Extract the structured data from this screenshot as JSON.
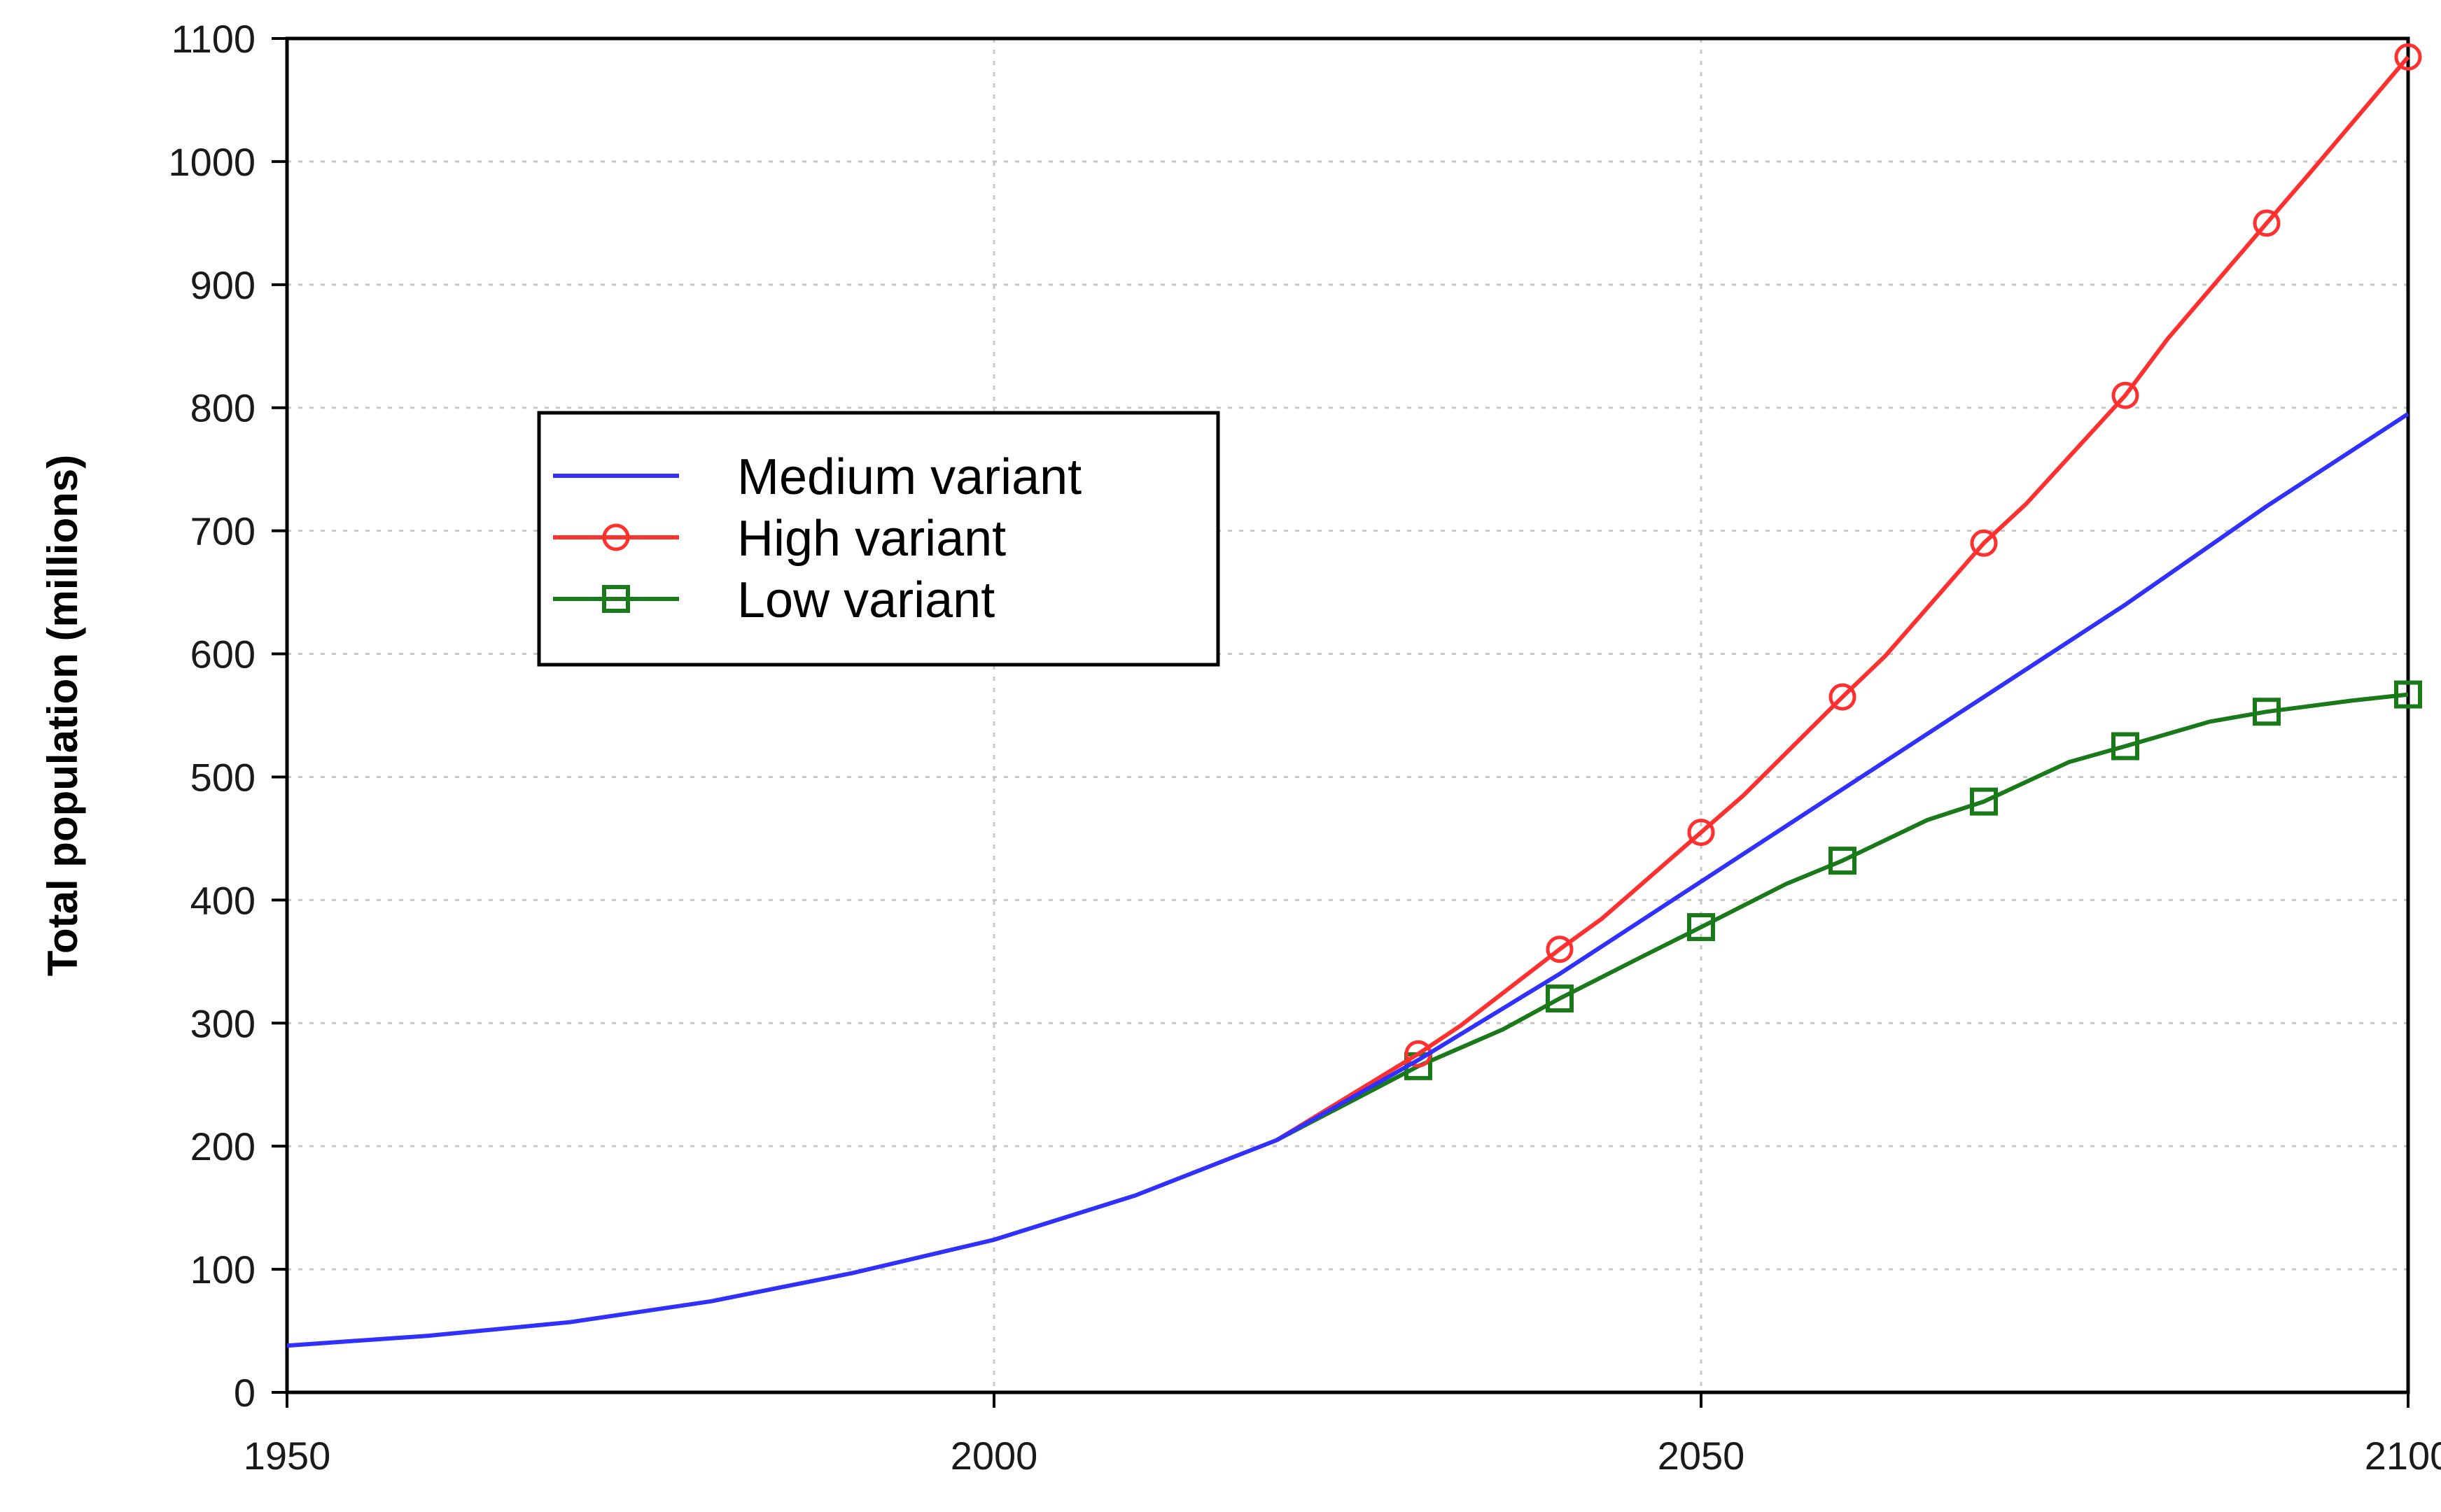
{
  "chart_data": {
    "type": "line",
    "ylabel": "Total population (millions)",
    "xlabel": "",
    "xlim": [
      1950,
      2100
    ],
    "ylim": [
      0,
      1100
    ],
    "xticks": [
      1950,
      2000,
      2050,
      2100
    ],
    "yticks": [
      0,
      100,
      200,
      300,
      400,
      500,
      600,
      700,
      800,
      900,
      1000,
      1100
    ],
    "grid": true,
    "legend_position": "upper-left",
    "series": [
      {
        "name": "Medium variant",
        "color": "#3030ff",
        "marker": "none",
        "x": [
          1950,
          1960,
          1970,
          1980,
          1990,
          2000,
          2010,
          2020,
          2030,
          2040,
          2050,
          2060,
          2070,
          2080,
          2090,
          2100
        ],
        "y": [
          38,
          46,
          57,
          74,
          97,
          124,
          160,
          205,
          270,
          340,
          415,
          490,
          565,
          640,
          720,
          795
        ]
      },
      {
        "name": "High variant",
        "color": "#ff3030",
        "marker": "circle",
        "x": [
          2020,
          2030,
          2033,
          2040,
          2043,
          2050,
          2053,
          2060,
          2063,
          2070,
          2073,
          2080,
          2083,
          2090,
          2093,
          2100
        ],
        "y": [
          205,
          275,
          298,
          360,
          385,
          455,
          485,
          565,
          598,
          690,
          722,
          810,
          856,
          950,
          990,
          1085
        ]
      },
      {
        "name": "Low variant",
        "color": "#1a7a1a",
        "marker": "square",
        "x": [
          2020,
          2030,
          2036,
          2040,
          2046,
          2050,
          2056,
          2060,
          2066,
          2070,
          2076,
          2080,
          2086,
          2090,
          2096,
          2100
        ],
        "y": [
          205,
          265,
          295,
          320,
          355,
          378,
          413,
          432,
          465,
          480,
          512,
          525,
          545,
          553,
          562,
          567
        ]
      }
    ]
  }
}
